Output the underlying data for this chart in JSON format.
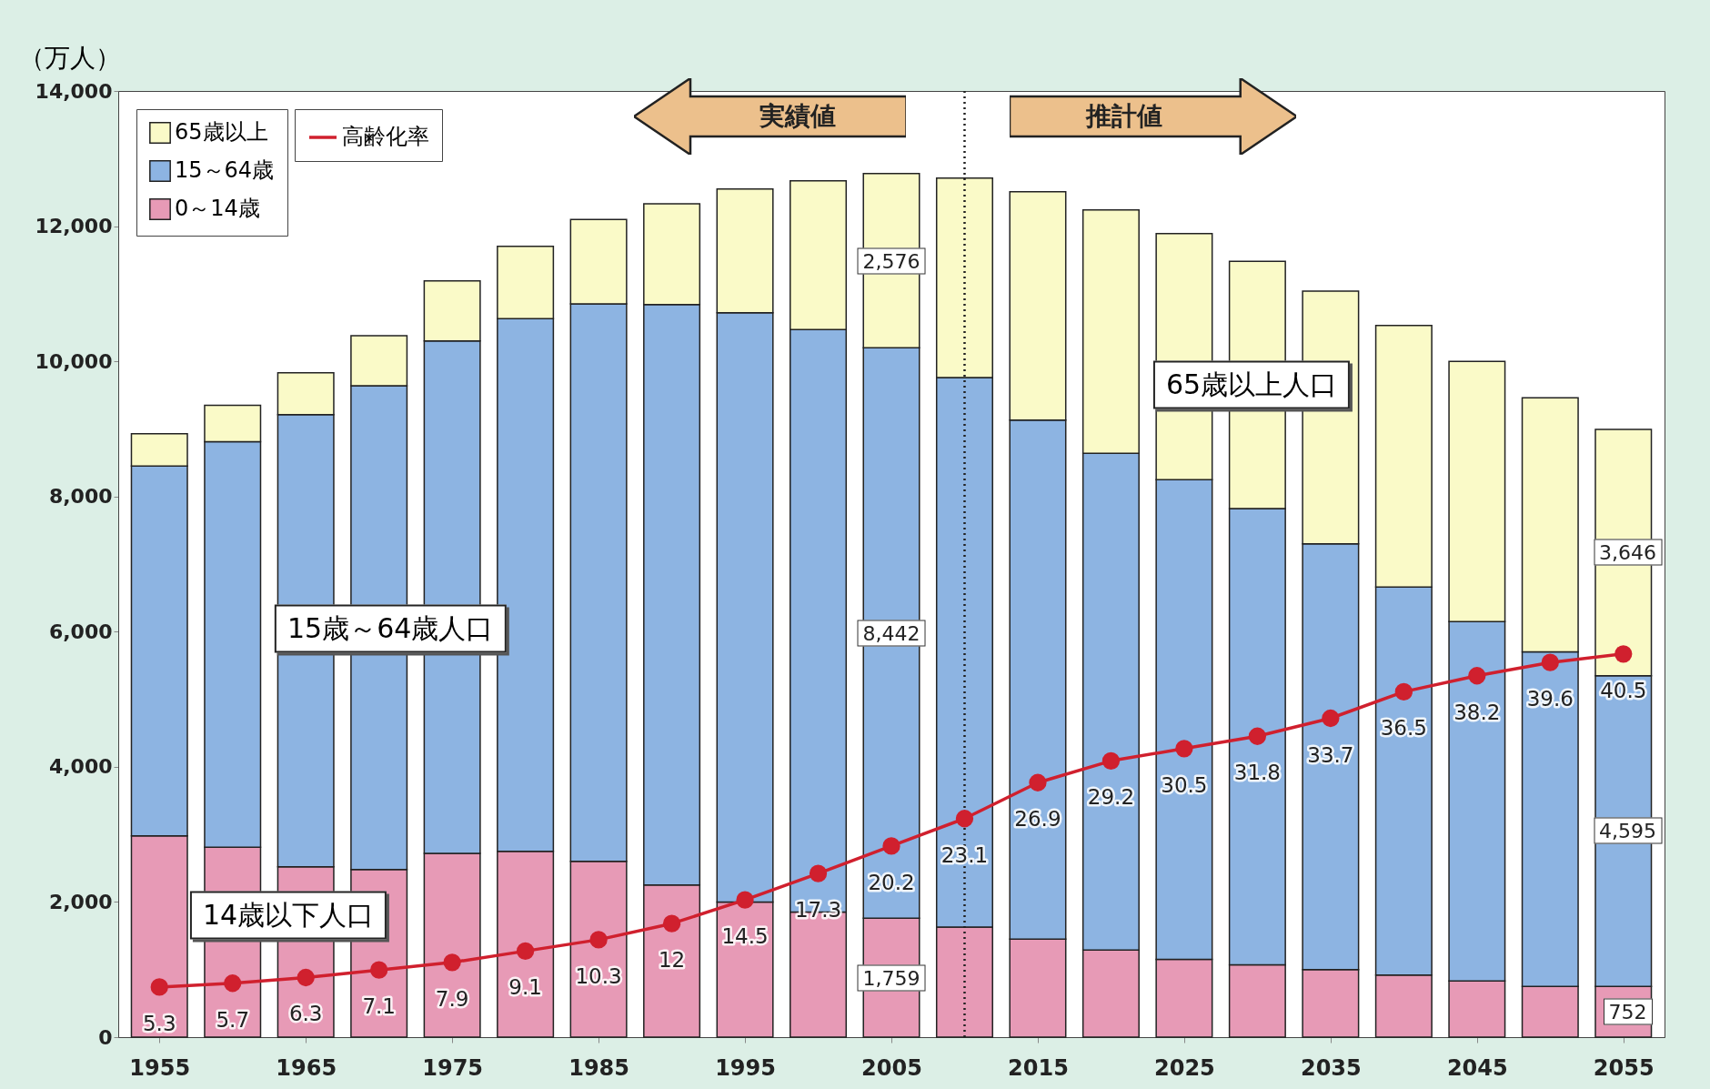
{
  "chart_data": {
    "type": "bar",
    "stacked": true,
    "ylabel": "（万人）",
    "x": [
      1955,
      1960,
      1965,
      1970,
      1975,
      1980,
      1985,
      1990,
      1995,
      2000,
      2005,
      2010,
      2015,
      2020,
      2025,
      2030,
      2035,
      2040,
      2045,
      2050,
      2055
    ],
    "xlim": [
      1952.5,
      2057.5
    ],
    "xticks": [
      1955,
      1965,
      1975,
      1985,
      1995,
      2005,
      2015,
      2025,
      2035,
      2045,
      2055
    ],
    "ylim": [
      0,
      14000
    ],
    "yticks": [
      0,
      {
        "value": 2000,
        "label": "2,000"
      },
      {
        "value": 4000,
        "label": "4,000"
      },
      {
        "value": 6000,
        "label": "6,000"
      },
      {
        "value": 8000,
        "label": "8,000"
      },
      {
        "value": 10000,
        "label": "10,000"
      },
      {
        "value": 12000,
        "label": "12,000"
      },
      {
        "value": 14000,
        "label": "14,000"
      }
    ],
    "y2lim": [
      0,
      100
    ],
    "series": [
      {
        "name": "0～14歳",
        "color": "#e79ab6",
        "values": [
          2980,
          2810,
          2520,
          2480,
          2720,
          2750,
          2600,
          2250,
          2000,
          1850,
          1759,
          1630,
          1450,
          1290,
          1150,
          1070,
          1000,
          920,
          830,
          750,
          752
        ],
        "value_labels": [
          null,
          null,
          null,
          null,
          null,
          null,
          null,
          null,
          null,
          null,
          "1,759",
          null,
          null,
          null,
          null,
          null,
          null,
          null,
          null,
          null,
          "752"
        ]
      },
      {
        "name": "15～64歳",
        "color": "#8db4e2",
        "values": [
          5470,
          6000,
          6690,
          7160,
          7580,
          7880,
          8250,
          8590,
          8720,
          8620,
          8442,
          8130,
          7680,
          7350,
          7100,
          6750,
          6300,
          5740,
          5320,
          4950,
          4595
        ],
        "value_labels": [
          null,
          null,
          null,
          null,
          null,
          null,
          null,
          null,
          null,
          null,
          "8,442",
          null,
          null,
          null,
          null,
          null,
          null,
          null,
          null,
          null,
          "4,595"
        ]
      },
      {
        "name": "65歳以上",
        "color": "#fafac8",
        "values": [
          480,
          540,
          620,
          740,
          890,
          1070,
          1250,
          1490,
          1830,
          2200,
          2576,
          2950,
          3380,
          3600,
          3640,
          3660,
          3740,
          3870,
          3850,
          3760,
          3646
        ],
        "value_labels": [
          null,
          null,
          null,
          null,
          null,
          null,
          null,
          null,
          null,
          null,
          "2,576",
          null,
          null,
          null,
          null,
          null,
          null,
          null,
          null,
          null,
          "3,646"
        ]
      },
      {
        "name": "高齢化率",
        "type": "line",
        "axis": "y2",
        "color": "#d0202e",
        "marker": "circle",
        "values": [
          5.3,
          5.7,
          6.3,
          7.1,
          7.9,
          9.1,
          10.3,
          12,
          14.5,
          17.3,
          20.2,
          23.1,
          26.9,
          29.2,
          30.5,
          31.8,
          33.7,
          36.5,
          38.2,
          39.6,
          40.5
        ],
        "value_labels": [
          "5.3",
          "5.7",
          "6.3",
          "7.1",
          "7.9",
          "9.1",
          "10.3",
          "12",
          "14.5",
          "17.3",
          "20.2",
          "23.1",
          "26.9",
          "29.2",
          "30.5",
          "31.8",
          "33.7",
          "36.5",
          "38.2",
          "39.6",
          "40.5"
        ]
      }
    ],
    "ref_lines": [
      {
        "axis": "x",
        "value": 2010,
        "line_style": "dotted",
        "color": "#222222"
      }
    ],
    "annotations": [
      "実績値",
      "推計値",
      "15歳～64歳人口",
      "65歳以上人口",
      "14歳以下人口"
    ],
    "legend": "top left",
    "grid": false
  }
}
